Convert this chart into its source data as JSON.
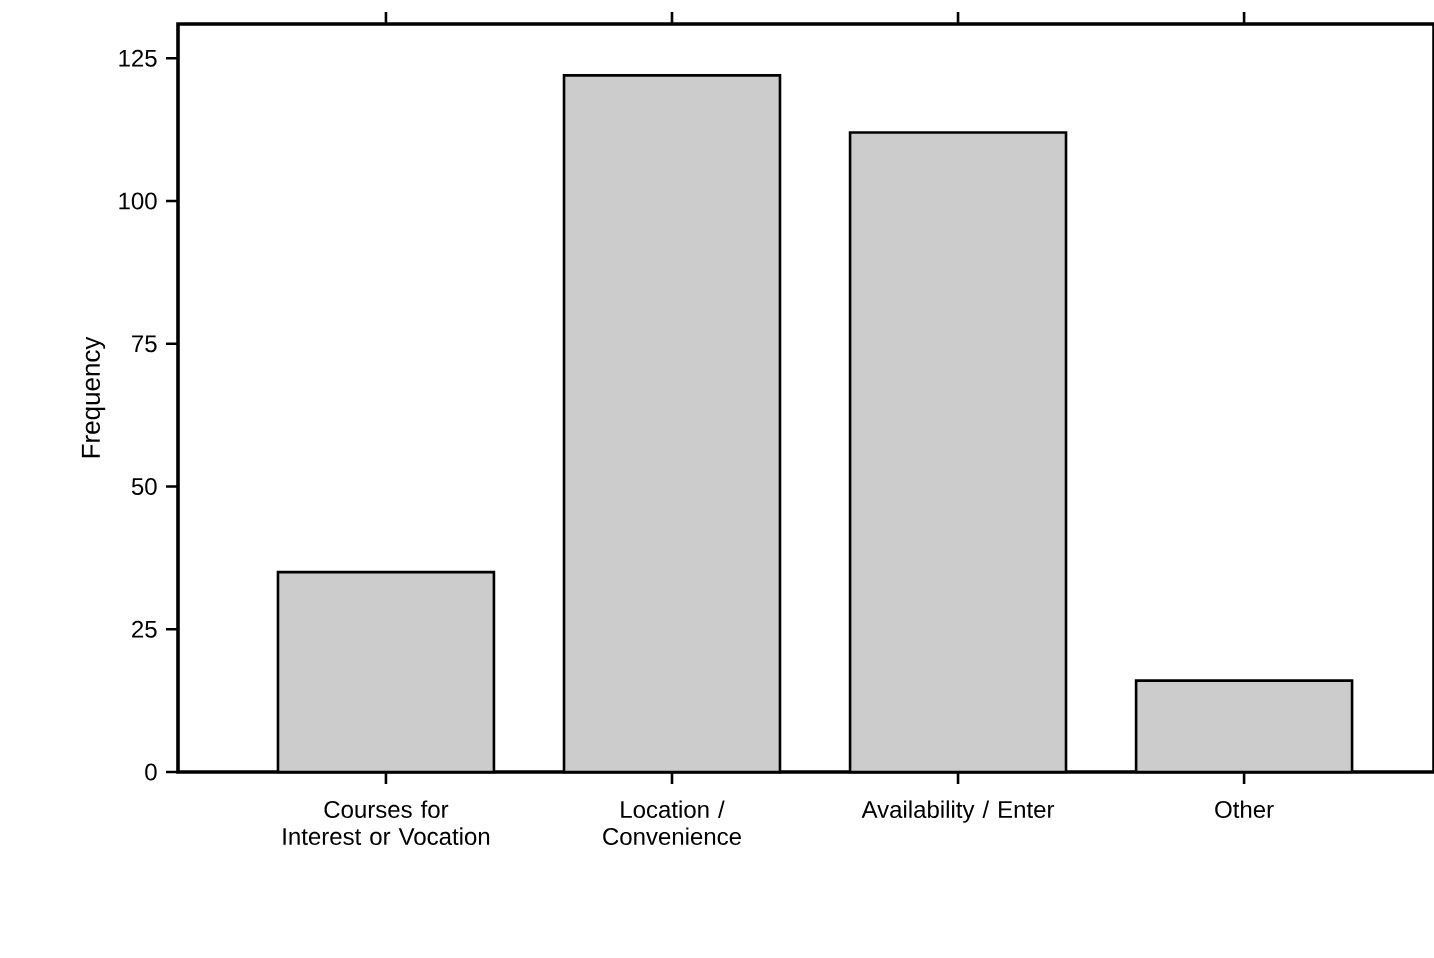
{
  "chart_data": {
    "type": "bar",
    "ylabel": "Frequency",
    "categories": [
      "Courses for Interest or Vocation",
      "Location / Convenience",
      "Availability / Enter",
      "Other"
    ],
    "values": [
      35,
      122,
      112,
      16
    ],
    "color": "#cccccc",
    "ylim": [
      0,
      131
    ],
    "yticks": [
      0,
      25,
      50,
      75,
      100,
      125
    ],
    "grid": false
  }
}
